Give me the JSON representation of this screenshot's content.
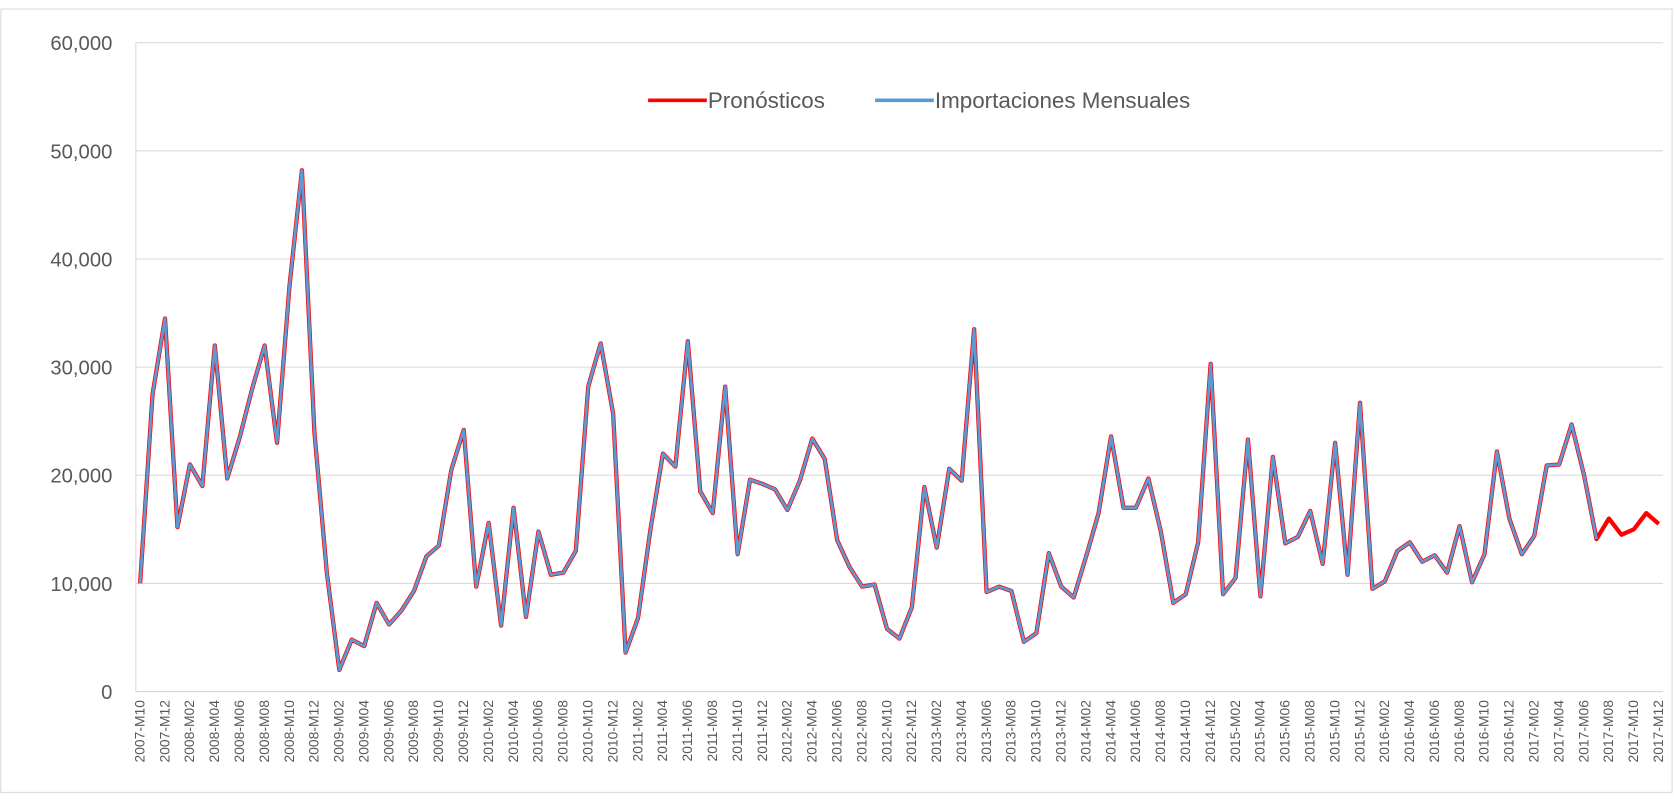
{
  "chart_data": {
    "type": "line",
    "categories": [
      "2007-M10",
      null,
      "2007-M12",
      null,
      "2008-M02",
      null,
      "2008-M04",
      null,
      "2008-M06",
      null,
      "2008-M08",
      null,
      "2008-M10",
      null,
      "2008-M12",
      null,
      "2009-M02",
      null,
      "2009-M04",
      null,
      "2009-M06",
      null,
      "2009-M08",
      null,
      "2009-M10",
      null,
      "2009-M12",
      null,
      "2010-M02",
      null,
      "2010-M04",
      null,
      "2010-M06",
      null,
      "2010-M08",
      null,
      "2010-M10",
      null,
      "2010-M12",
      null,
      "2011-M02",
      null,
      "2011-M04",
      null,
      "2011-M06",
      null,
      "2011-M08",
      null,
      "2011-M10",
      null,
      "2011-M12",
      null,
      "2012-M02",
      null,
      "2012-M04",
      null,
      "2012-M06",
      null,
      "2012-M08",
      null,
      "2012-M10",
      null,
      "2012-M12",
      null,
      "2013-M02",
      null,
      "2013-M04",
      null,
      "2013-M06",
      null,
      "2013-M08",
      null,
      "2013-M10",
      null,
      "2013-M12",
      null,
      "2014-M02",
      null,
      "2014-M04",
      null,
      "2014-M06",
      null,
      "2014-M08",
      null,
      "2014-M10",
      null,
      "2014-M12",
      null,
      "2015-M02",
      null,
      "2015-M04",
      null,
      "2015-M06",
      null,
      "2015-M08",
      null,
      "2015-M10",
      null,
      "2015-M12",
      null,
      "2016-M02",
      null,
      "2016-M04",
      null,
      "2016-M06",
      null,
      "2016-M08",
      null,
      "2016-M10",
      null,
      "2016-M12",
      null,
      "2017-M02",
      null,
      "2017-M04",
      null,
      "2017-M06",
      null,
      "2017-M08",
      null,
      "2017-M10",
      null,
      "2017-M12"
    ],
    "series": [
      {
        "name": "Pronósticos",
        "color": "#ff0000",
        "values": [
          10000,
          27500,
          34500,
          15200,
          21000,
          19000,
          32000,
          19700,
          23500,
          28000,
          32000,
          23000,
          37500,
          48200,
          24000,
          11000,
          2000,
          4800,
          4200,
          8200,
          6200,
          7500,
          9300,
          12500,
          13500,
          20500,
          24200,
          9700,
          15600,
          6100,
          17000,
          6900,
          14800,
          10800,
          11000,
          13000,
          28200,
          32200,
          25700,
          3600,
          6800,
          15000,
          22000,
          20800,
          32400,
          18500,
          16500,
          28200,
          12700,
          19600,
          19200,
          18700,
          16800,
          19500,
          23400,
          21500,
          14000,
          11500,
          9700,
          9900,
          5800,
          4900,
          7800,
          18900,
          13300,
          20600,
          19500,
          33500,
          9200,
          9700,
          9300,
          4600,
          5400,
          12800,
          9700,
          8700,
          12500,
          16500,
          23600,
          17000,
          17000,
          19700,
          14800,
          8200,
          9000,
          13800,
          30300,
          9000,
          10500,
          23300,
          8800,
          21700,
          13700,
          14300,
          16700,
          11800,
          23000,
          10800,
          26700,
          9500,
          10200,
          13000,
          13800,
          12000,
          12600,
          11000,
          15300,
          10100,
          12700,
          22200,
          16000,
          12700,
          14400,
          20900,
          21000,
          24700,
          20000,
          14100,
          16000,
          14500,
          15000,
          16500,
          15500
        ]
      },
      {
        "name": "Importaciones Mensuales",
        "color": "#5b9bd5",
        "values": [
          10000,
          27500,
          34500,
          15200,
          21000,
          19000,
          32000,
          19700,
          23500,
          28000,
          32000,
          23000,
          37500,
          48200,
          24000,
          11000,
          2000,
          4800,
          4200,
          8200,
          6200,
          7500,
          9300,
          12500,
          13500,
          20500,
          24200,
          9700,
          15600,
          6100,
          17000,
          6900,
          14800,
          10800,
          11000,
          13000,
          28200,
          32200,
          25700,
          3600,
          6800,
          15000,
          22000,
          20800,
          32400,
          18500,
          16500,
          28200,
          12700,
          19600,
          19200,
          18700,
          16800,
          19500,
          23400,
          21500,
          14000,
          11500,
          9700,
          9900,
          5800,
          4900,
          7800,
          18900,
          13300,
          20600,
          19500,
          33500,
          9200,
          9700,
          9300,
          4600,
          5400,
          12800,
          9700,
          8700,
          12500,
          16500,
          23600,
          17000,
          17000,
          19700,
          14800,
          8200,
          9000,
          13800,
          30300,
          9000,
          10500,
          23300,
          8800,
          21700,
          13700,
          14300,
          16700,
          11800,
          23000,
          10800,
          26700,
          9500,
          10200,
          13000,
          13800,
          12000,
          12600,
          11000,
          15300,
          10100,
          12700,
          22200,
          16000,
          12700,
          14400,
          20900,
          21000,
          24700,
          20000,
          14100,
          null,
          null,
          null,
          null,
          null
        ]
      }
    ],
    "ylim": [
      0,
      60000
    ],
    "yticks": [
      0,
      {
        "value": 10000,
        "label": "10,000"
      },
      {
        "value": 20000,
        "label": "20,000"
      },
      {
        "value": 30000,
        "label": "30,000"
      },
      {
        "value": 40000,
        "label": "40,000"
      },
      {
        "value": 50000,
        "label": "50,000"
      },
      {
        "value": 60000,
        "label": "60,000"
      }
    ],
    "grid": true,
    "legend": "top"
  }
}
